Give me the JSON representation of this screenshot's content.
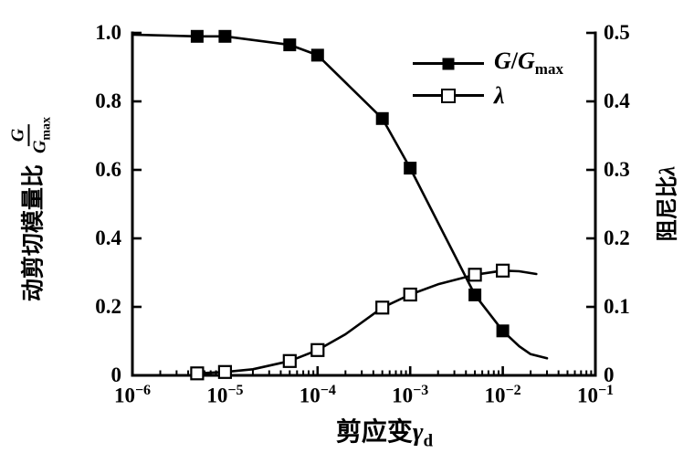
{
  "figure": {
    "background": "#ffffff",
    "ink_color": "#000000"
  },
  "chart_data": {
    "type": "line",
    "grid": false,
    "x_axis": {
      "scale": "log",
      "range": [
        1e-06,
        0.1
      ],
      "label_text": "剪应变",
      "label_symbol": "γ",
      "label_sub": "d",
      "tick_values": [
        1e-06,
        1e-05,
        0.0001,
        0.001,
        0.01,
        0.1
      ],
      "ticks": [
        {
          "base": "10",
          "exp": "−6"
        },
        {
          "base": "10",
          "exp": "−5"
        },
        {
          "base": "10",
          "exp": "−4"
        },
        {
          "base": "10",
          "exp": "−3"
        },
        {
          "base": "10",
          "exp": "−2"
        },
        {
          "base": "10",
          "exp": "−1"
        }
      ],
      "minor_ticks": "2-9 within each decade"
    },
    "y_axis_left": {
      "range": [
        0,
        1.0
      ],
      "label_text": "动剪切模量比",
      "frac_num": "G",
      "frac_den": "G",
      "frac_den_sub": "max",
      "tick_values": [
        1.0,
        0.8,
        0.6,
        0.4,
        0.2,
        0
      ],
      "ticks": [
        "1.0",
        "0.8",
        "0.6",
        "0.4",
        "0.2",
        "0"
      ]
    },
    "y_axis_right": {
      "range": [
        0,
        0.5
      ],
      "label_text": "阻尼比",
      "label_symbol": "λ",
      "tick_values": [
        0.5,
        0.4,
        0.3,
        0.2,
        0.1,
        0
      ],
      "ticks": [
        "0.5",
        "0.4",
        "0.3",
        "0.2",
        "0.1",
        "0"
      ]
    },
    "series": [
      {
        "id": "g-gmax",
        "name": "G/Gmax",
        "axis": "left",
        "marker": "filled-square",
        "points": [
          [
            5e-06,
            0.99
          ],
          [
            1e-05,
            0.99
          ],
          [
            5e-05,
            0.965
          ],
          [
            0.0001,
            0.935
          ],
          [
            0.0005,
            0.75
          ],
          [
            0.001,
            0.605
          ],
          [
            0.005,
            0.235
          ],
          [
            0.01,
            0.13
          ]
        ],
        "line_points": [
          [
            1e-06,
            0.995
          ],
          [
            5e-06,
            0.99
          ],
          [
            1e-05,
            0.99
          ],
          [
            5e-05,
            0.965
          ],
          [
            0.0001,
            0.935
          ],
          [
            0.0005,
            0.75
          ],
          [
            0.001,
            0.605
          ],
          [
            0.005,
            0.235
          ],
          [
            0.01,
            0.13
          ],
          [
            0.015,
            0.085
          ],
          [
            0.02,
            0.062
          ],
          [
            0.03,
            0.05
          ]
        ]
      },
      {
        "id": "lambda",
        "name": "λ",
        "axis": "right",
        "marker": "open-square",
        "points": [
          [
            5e-06,
            0.003
          ],
          [
            1e-05,
            0.005
          ],
          [
            5e-05,
            0.021
          ],
          [
            0.0001,
            0.037
          ],
          [
            0.0005,
            0.099
          ],
          [
            0.001,
            0.118
          ],
          [
            0.005,
            0.147
          ],
          [
            0.01,
            0.153
          ]
        ],
        "line_points": [
          [
            5e-06,
            0.003
          ],
          [
            1e-05,
            0.005
          ],
          [
            2e-05,
            0.009
          ],
          [
            5e-05,
            0.021
          ],
          [
            0.0001,
            0.037
          ],
          [
            0.0002,
            0.06
          ],
          [
            0.0005,
            0.099
          ],
          [
            0.001,
            0.118
          ],
          [
            0.002,
            0.133
          ],
          [
            0.005,
            0.147
          ],
          [
            0.01,
            0.153
          ],
          [
            0.015,
            0.152
          ],
          [
            0.023,
            0.148
          ]
        ]
      }
    ],
    "legend": {
      "position": "upper-right-inside",
      "items": [
        {
          "marker": "filled-square",
          "label_g1": "G",
          "label_slash": "/",
          "label_g2": "G",
          "label_sub": "max"
        },
        {
          "marker": "open-square",
          "label": "λ"
        }
      ]
    }
  }
}
